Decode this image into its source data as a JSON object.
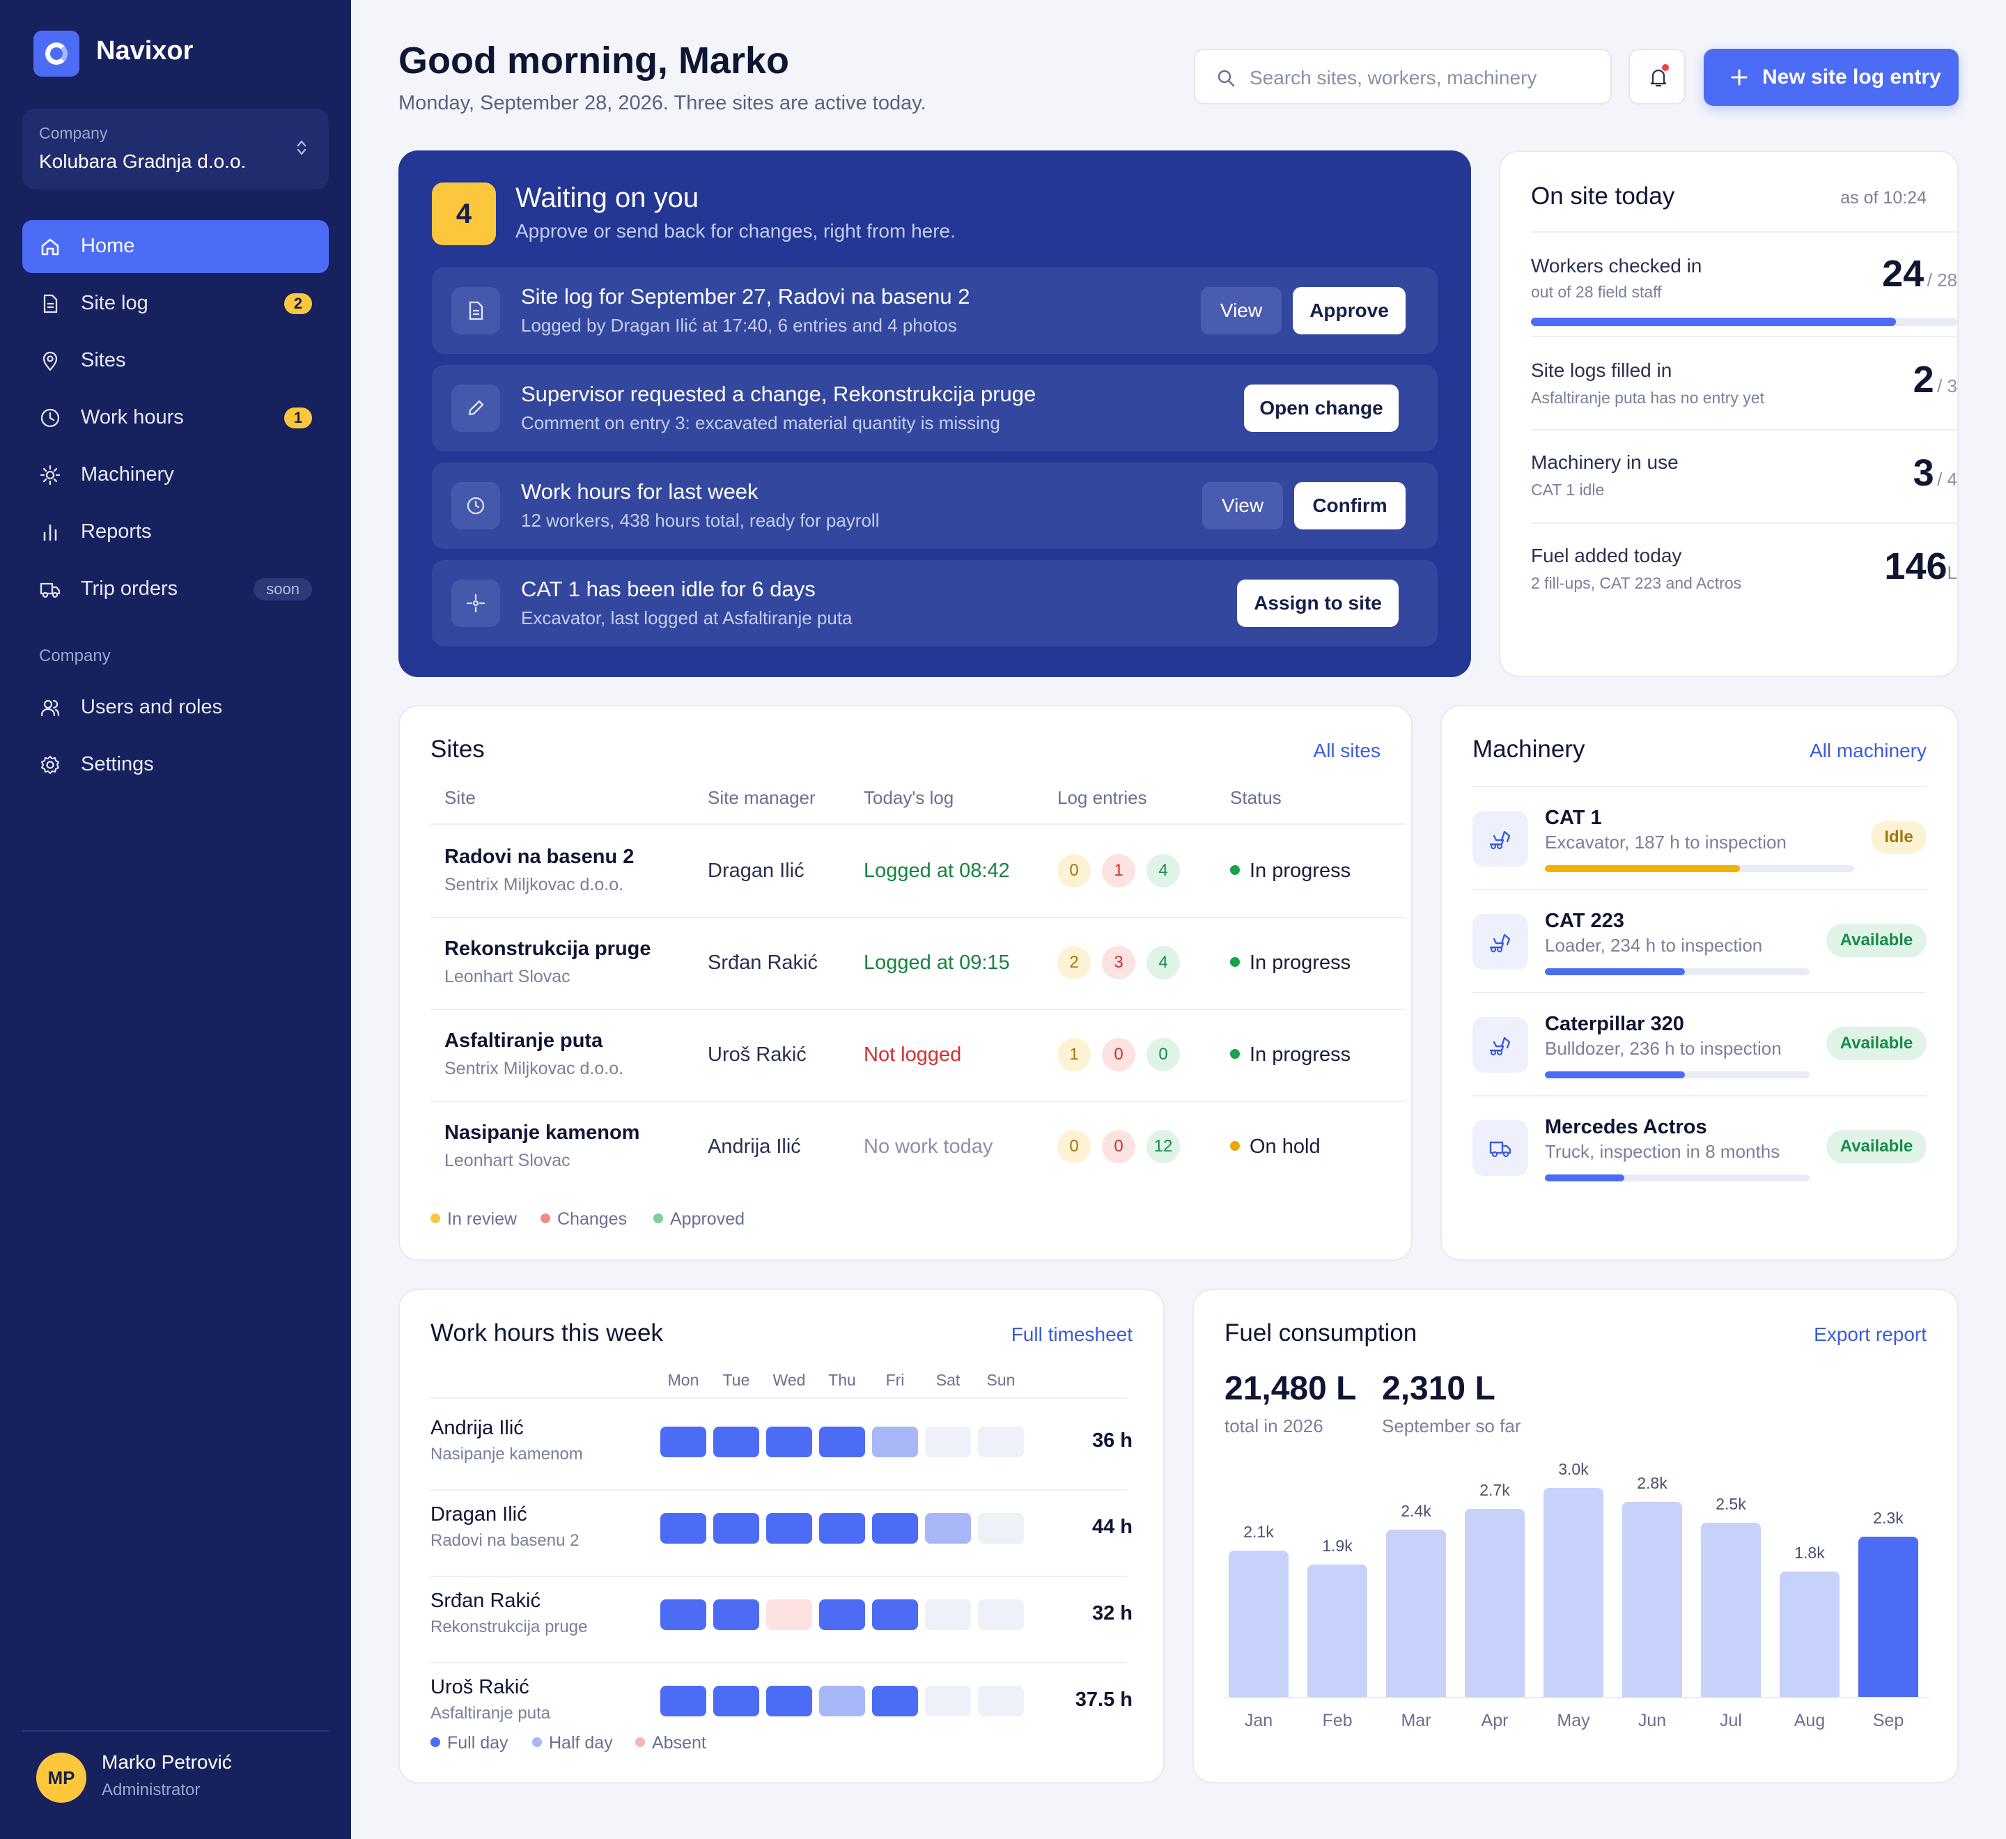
{
  "brand": {
    "name": "Navixor"
  },
  "company_switcher": {
    "label": "Company",
    "name": "Kolubara Gradnja d.o.o."
  },
  "nav": [
    {
      "label": "Home",
      "icon": "home-icon",
      "active": true
    },
    {
      "label": "Site log",
      "icon": "document-icon",
      "badge": "2"
    },
    {
      "label": "Sites",
      "icon": "map-pin-icon"
    },
    {
      "label": "Work hours",
      "icon": "clock-icon",
      "badge": "1"
    },
    {
      "label": "Machinery",
      "icon": "cog-icon"
    },
    {
      "label": "Reports",
      "icon": "bar-chart-icon"
    },
    {
      "label": "Trip orders",
      "icon": "truck-icon",
      "badge": "soon"
    }
  ],
  "nav_section": "Company",
  "nav_company": [
    {
      "label": "Users and roles",
      "icon": "users-icon"
    },
    {
      "label": "Settings",
      "icon": "settings-icon"
    }
  ],
  "user": {
    "initials": "MP",
    "name": "Marko Petrović",
    "role": "Administrator"
  },
  "header": {
    "greeting": "Good morning, Marko",
    "subtitle": "Monday, September 28, 2026. Three sites are active today.",
    "search_placeholder": "Search sites, workers, machinery",
    "new_button": "New site log entry"
  },
  "waiting": {
    "count": "4",
    "title": "Waiting on you",
    "subtitle": "Approve or send back for changes, right from here.",
    "items": [
      {
        "title": "Site log for September 27, Radovi na basenu 2",
        "sub": "Logged by Dragan Ilić at 17:40, 6 entries and 4 photos",
        "secondary": "View",
        "primary": "Approve"
      },
      {
        "title": "Supervisor requested a change, Rekonstrukcija pruge",
        "sub": "Comment on entry 3: excavated material quantity is missing",
        "primary": "Open change"
      },
      {
        "title": "Work hours for last week",
        "sub": "12 workers, 438 hours total, ready for payroll",
        "secondary": "View",
        "primary": "Confirm"
      },
      {
        "title": "CAT 1 has been idle for 6 days",
        "sub": "Excavator, last logged at Asfaltiranje puta",
        "primary": "Assign to site"
      }
    ]
  },
  "on_site": {
    "title": "On site today",
    "as_of": "as of 10:24",
    "rows": [
      {
        "label": "Workers checked in",
        "sub": "out of 28 field staff",
        "value": "24",
        "denom": "/ 28",
        "progress": 0.857
      },
      {
        "label": "Site logs filled in",
        "sub": "Asfaltiranje puta has no entry yet",
        "value": "2",
        "denom": "/ 3"
      },
      {
        "label": "Machinery in use",
        "sub": "CAT 1 idle",
        "value": "3",
        "denom": "/ 4"
      },
      {
        "label": "Fuel added today",
        "sub": "2 fill-ups, CAT 223 and Actros",
        "value": "146",
        "denom": "L"
      }
    ]
  },
  "sites": {
    "title": "Sites",
    "link": "All sites",
    "columns": [
      "Site",
      "Site manager",
      "Today's log",
      "Log entries",
      "Status"
    ],
    "rows": [
      {
        "name": "Radovi na basenu 2",
        "company": "Sentrix Miljkovac d.o.o.",
        "manager": "Dragan Ilić",
        "log": "Logged at 08:42",
        "log_state": "ok",
        "entries": [
          "0",
          "1",
          "4"
        ],
        "status": "In progress",
        "status_color": "#16a34a"
      },
      {
        "name": "Rekonstrukcija pruge",
        "company": "Leonhart Slovac",
        "manager": "Srđan Rakić",
        "log": "Logged at 09:15",
        "log_state": "ok",
        "entries": [
          "2",
          "3",
          "4"
        ],
        "status": "In progress",
        "status_color": "#16a34a"
      },
      {
        "name": "Asfaltiranje puta",
        "company": "Sentrix Miljkovac d.o.o.",
        "manager": "Uroš Rakić",
        "log": "Not logged",
        "log_state": "missing",
        "entries": [
          "1",
          "0",
          "0"
        ],
        "status": "In progress",
        "status_color": "#16a34a"
      },
      {
        "name": "Nasipanje kamenom",
        "company": "Leonhart Slovac",
        "manager": "Andrija Ilić",
        "log": "No work today",
        "log_state": "none",
        "entries": [
          "0",
          "0",
          "12"
        ],
        "status": "On hold",
        "status_color": "#f0a500"
      }
    ],
    "legend": [
      "In review",
      "Changes",
      "Approved"
    ]
  },
  "machinery": {
    "title": "Machinery",
    "link": "All machinery",
    "items": [
      {
        "name": "CAT 1",
        "sub": "Excavator, 187 h to inspection",
        "status": "Idle",
        "progress": 0.63,
        "icon": "excavator-icon"
      },
      {
        "name": "CAT 223",
        "sub": "Loader, 234 h to inspection",
        "status": "Available",
        "progress": 0.53,
        "icon": "excavator-icon"
      },
      {
        "name": "Caterpillar 320",
        "sub": "Bulldozer, 236 h to inspection",
        "status": "Available",
        "progress": 0.53,
        "icon": "excavator-icon"
      },
      {
        "name": "Mercedes Actros",
        "sub": "Truck, inspection in 8 months",
        "status": "Available",
        "progress": 0.3,
        "icon": "truck-icon"
      }
    ]
  },
  "work_hours": {
    "title": "Work hours this week",
    "link": "Full timesheet",
    "days": [
      "Mon",
      "Tue",
      "Wed",
      "Thu",
      "Fri",
      "Sat",
      "Sun"
    ],
    "workers": [
      {
        "name": "Andrija Ilić",
        "site": "Nasipanje kamenom",
        "days": [
          "full",
          "full",
          "full",
          "full",
          "half",
          "none",
          "none"
        ],
        "total": "36 h"
      },
      {
        "name": "Dragan Ilić",
        "site": "Radovi na basenu 2",
        "days": [
          "full",
          "full",
          "full",
          "full",
          "full",
          "half",
          "none"
        ],
        "total": "44 h"
      },
      {
        "name": "Srđan Rakić",
        "site": "Rekonstrukcija pruge",
        "days": [
          "full",
          "full",
          "absent",
          "full",
          "full",
          "none",
          "none"
        ],
        "total": "32 h"
      },
      {
        "name": "Uroš Rakić",
        "site": "Asfaltiranje puta",
        "days": [
          "full",
          "full",
          "full",
          "half",
          "full",
          "none",
          "none"
        ],
        "total": "37.5 h"
      }
    ],
    "legend": [
      "Full day",
      "Half day",
      "Absent"
    ]
  },
  "fuel": {
    "title": "Fuel consumption",
    "link": "Export report",
    "total_value": "21,480 L",
    "total_caption": "total in 2026",
    "month_value": "2,310 L",
    "month_caption": "September so far"
  },
  "chart_data": {
    "type": "bar",
    "categories": [
      "Jan",
      "Feb",
      "Mar",
      "Apr",
      "May",
      "Jun",
      "Jul",
      "Aug",
      "Sep"
    ],
    "values": [
      2100,
      1900,
      2400,
      2700,
      3000,
      2800,
      2500,
      1800,
      2300
    ],
    "labels": [
      "2.1k",
      "1.9k",
      "2.4k",
      "2.7k",
      "3.0k",
      "2.8k",
      "2.5k",
      "1.8k",
      "2.3k"
    ],
    "highlight": "Sep",
    "ylim": [
      0,
      3300
    ],
    "colors": {
      "bar": "#c7d2fb",
      "current": "#4d6cf5"
    }
  },
  "colors": {
    "accent": "#4d6cf5",
    "sidebar": "#16215e",
    "waiting_bg": "#243795",
    "badge": "#fcc73d"
  }
}
